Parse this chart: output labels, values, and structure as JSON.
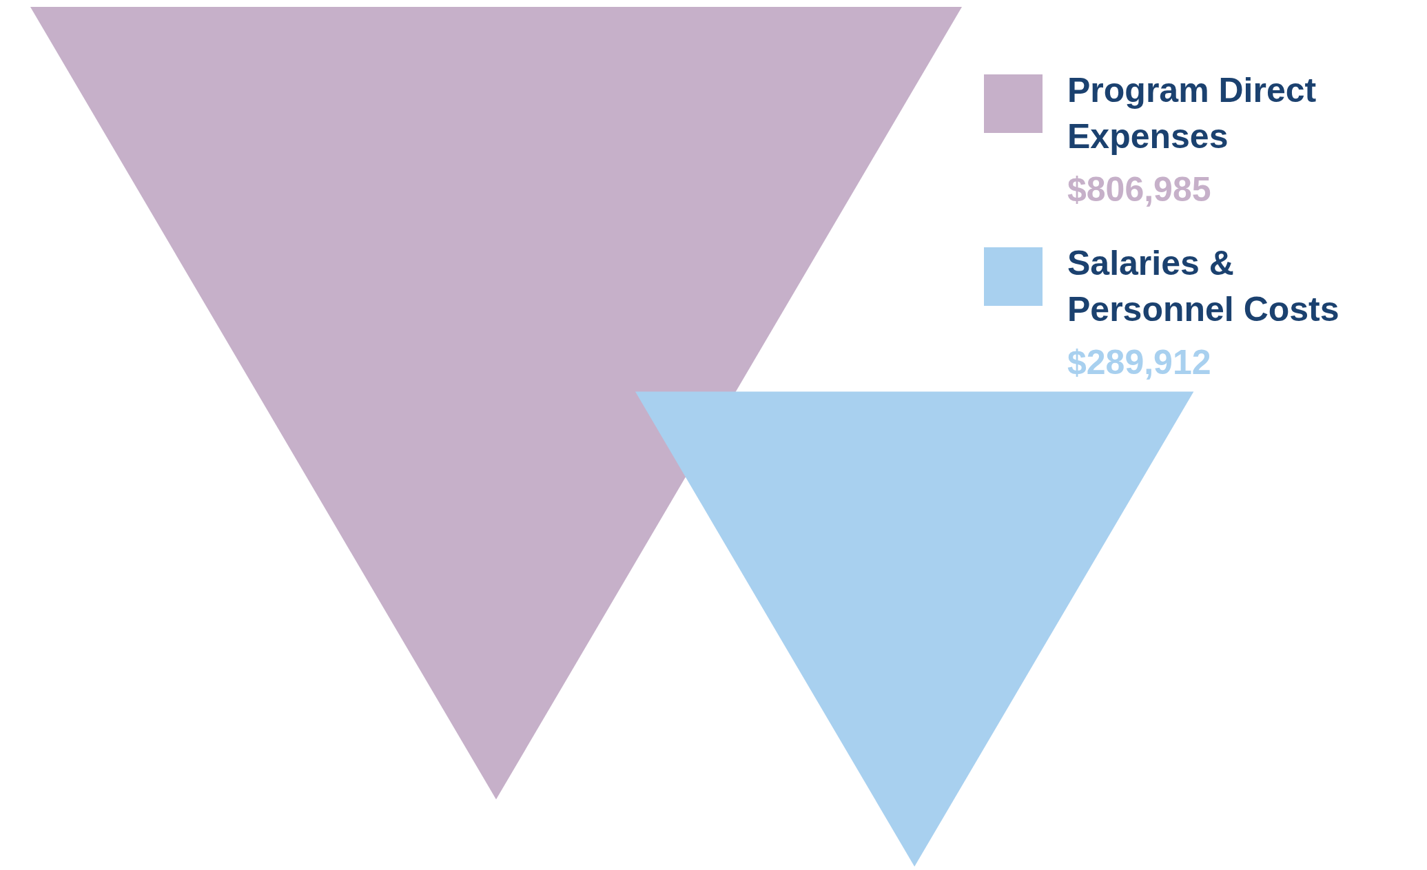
{
  "chart_data": {
    "type": "other",
    "categories": [
      "Program Direct Expenses",
      "Salaries & Personnel Costs"
    ],
    "values": [
      806985,
      289912
    ],
    "value_labels": [
      "$806,985",
      "$289,912"
    ],
    "colors": [
      "#c6b0c9",
      "#a8d0ef"
    ]
  }
}
